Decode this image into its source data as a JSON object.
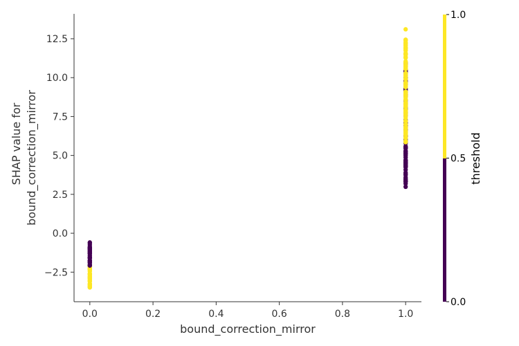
{
  "chart_data": {
    "type": "scatter",
    "xlabel": "bound_correction_mirror",
    "ylabel_lines": [
      "SHAP value for",
      "bound_correction_mirror"
    ],
    "xlim": [
      -0.05,
      1.05
    ],
    "ylim": [
      -4.4,
      14.1
    ],
    "xticks": [
      0.0,
      0.2,
      0.4,
      0.6,
      0.8,
      1.0
    ],
    "xtick_labels": [
      "0.0",
      "0.2",
      "0.4",
      "0.6",
      "0.8",
      "1.0"
    ],
    "yticks": [
      -2.5,
      0.0,
      2.5,
      5.0,
      7.5,
      10.0,
      12.5
    ],
    "ytick_labels": [
      "−2.5",
      "0.0",
      "2.5",
      "5.0",
      "7.5",
      "10.0",
      "12.5"
    ],
    "grid": false,
    "colorbar": {
      "title": "threshold",
      "ticks": [
        0.0,
        0.5,
        1.0
      ],
      "tick_labels": [
        "0.0",
        "0.5",
        "1.0"
      ],
      "split": 0.5,
      "low_color": "#440154",
      "high_color": "#fde725"
    },
    "point_groups": [
      {
        "x": 0.0,
        "threshold": 1.0,
        "y_range": [
          -3.6,
          -2.0
        ]
      },
      {
        "x": 0.0,
        "threshold": 0.0,
        "y_range": [
          -2.2,
          -0.5
        ]
      },
      {
        "x": 1.0,
        "threshold": 0.0,
        "y_range": [
          2.5,
          11.2
        ]
      },
      {
        "x": 1.0,
        "threshold": 1.0,
        "y_range": [
          5.2,
          13.2
        ]
      }
    ]
  }
}
